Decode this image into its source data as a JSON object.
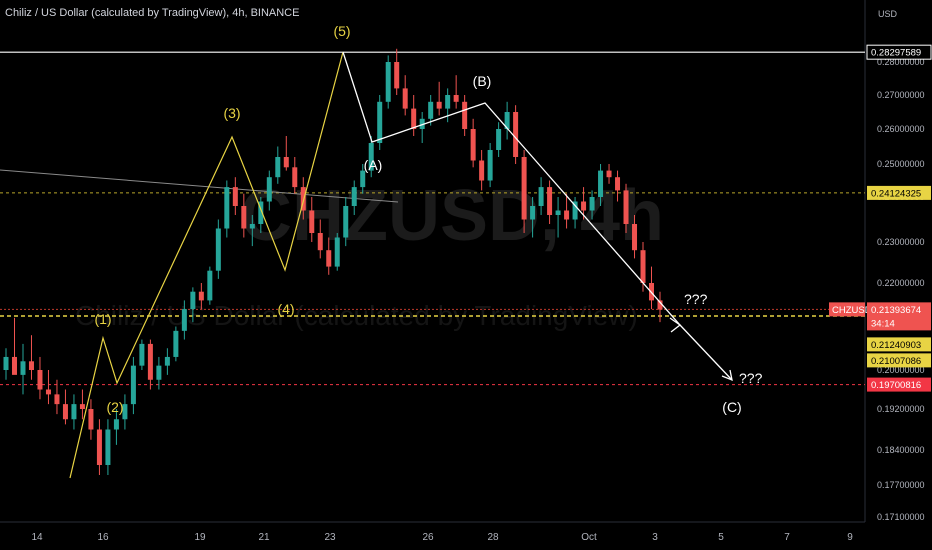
{
  "header": {
    "title": "Chiliz / US Dollar (calculated by TradingView), 4h, BINANCE"
  },
  "watermark": {
    "symbol": "CHZUSD, 4h",
    "name": "Chiliz / US Dollar (calculated by TradingView)"
  },
  "colors": {
    "up": "#26a69a",
    "down": "#ef5350",
    "yellow": "#e8d444",
    "white": "#ffffff",
    "red": "#f23645",
    "axis_bg": "#000000"
  },
  "chart_data": {
    "type": "candlestick",
    "ylabel": "USD",
    "y_ticks": [
      "0.28000000",
      "0.27000000",
      "0.26000000",
      "0.25000000",
      "0.24000000",
      "0.23000000",
      "0.22000000",
      "0.20000000",
      "0.19200000",
      "0.18400000",
      "0.17700000",
      "0.17100000"
    ],
    "x_ticks": [
      "14",
      "16",
      "19",
      "21",
      "23",
      "26",
      "28",
      "Oct",
      "3",
      "5",
      "7",
      "9"
    ],
    "price_tags": [
      {
        "label": "0.28297589",
        "value": 0.28297589,
        "style": "white"
      },
      {
        "label": "0.24124325",
        "value": 0.24124325,
        "style": "yellow"
      },
      {
        "label": "0.21393674",
        "value": 0.21393674,
        "style": "red",
        "symbol": "CHZUSD",
        "countdown": "34:14"
      },
      {
        "label": "0.21240903",
        "value": 0.21240903,
        "style": "yellow"
      },
      {
        "label": "0.21007086",
        "value": 0.21007086,
        "style": "yellow"
      },
      {
        "label": "0.19700816",
        "value": 0.19700816,
        "style": "red-solid"
      }
    ],
    "wave_labels": {
      "impulse": [
        "(1)",
        "(2)",
        "(3)",
        "(4)",
        "(5)"
      ],
      "corrective": [
        "(A)",
        "(B)",
        "(C)"
      ],
      "question": "???"
    },
    "candles_ohlc": [
      [
        0.2,
        0.205,
        0.198,
        0.203
      ],
      [
        0.203,
        0.212,
        0.2,
        0.199
      ],
      [
        0.199,
        0.206,
        0.195,
        0.202
      ],
      [
        0.202,
        0.208,
        0.198,
        0.2
      ],
      [
        0.2,
        0.203,
        0.194,
        0.196
      ],
      [
        0.196,
        0.2,
        0.193,
        0.195
      ],
      [
        0.195,
        0.198,
        0.191,
        0.193
      ],
      [
        0.193,
        0.196,
        0.189,
        0.19
      ],
      [
        0.19,
        0.195,
        0.188,
        0.193
      ],
      [
        0.193,
        0.196,
        0.19,
        0.192
      ],
      [
        0.192,
        0.194,
        0.186,
        0.188
      ],
      [
        0.188,
        0.19,
        0.179,
        0.181
      ],
      [
        0.181,
        0.19,
        0.179,
        0.188
      ],
      [
        0.188,
        0.192,
        0.185,
        0.19
      ],
      [
        0.19,
        0.195,
        0.188,
        0.193
      ],
      [
        0.193,
        0.203,
        0.191,
        0.201
      ],
      [
        0.201,
        0.207,
        0.2,
        0.206
      ],
      [
        0.206,
        0.207,
        0.196,
        0.198
      ],
      [
        0.198,
        0.203,
        0.196,
        0.201
      ],
      [
        0.201,
        0.205,
        0.199,
        0.203
      ],
      [
        0.203,
        0.21,
        0.202,
        0.209
      ],
      [
        0.209,
        0.216,
        0.207,
        0.214
      ],
      [
        0.214,
        0.219,
        0.211,
        0.218
      ],
      [
        0.218,
        0.22,
        0.214,
        0.216
      ],
      [
        0.216,
        0.224,
        0.215,
        0.223
      ],
      [
        0.223,
        0.235,
        0.221,
        0.233
      ],
      [
        0.233,
        0.245,
        0.231,
        0.243
      ],
      [
        0.243,
        0.246,
        0.236,
        0.238
      ],
      [
        0.238,
        0.241,
        0.231,
        0.233
      ],
      [
        0.233,
        0.236,
        0.229,
        0.234
      ],
      [
        0.234,
        0.24,
        0.232,
        0.239
      ],
      [
        0.239,
        0.248,
        0.237,
        0.246
      ],
      [
        0.246,
        0.255,
        0.244,
        0.252
      ],
      [
        0.252,
        0.258,
        0.248,
        0.249
      ],
      [
        0.249,
        0.252,
        0.241,
        0.243
      ],
      [
        0.243,
        0.246,
        0.235,
        0.237
      ],
      [
        0.237,
        0.24,
        0.23,
        0.232
      ],
      [
        0.232,
        0.235,
        0.226,
        0.228
      ],
      [
        0.228,
        0.231,
        0.222,
        0.224
      ],
      [
        0.224,
        0.232,
        0.223,
        0.231
      ],
      [
        0.231,
        0.24,
        0.229,
        0.238
      ],
      [
        0.238,
        0.245,
        0.236,
        0.243
      ],
      [
        0.243,
        0.25,
        0.241,
        0.248
      ],
      [
        0.248,
        0.258,
        0.246,
        0.256
      ],
      [
        0.256,
        0.27,
        0.254,
        0.268
      ],
      [
        0.268,
        0.282,
        0.266,
        0.28
      ],
      [
        0.28,
        0.284,
        0.27,
        0.272
      ],
      [
        0.272,
        0.276,
        0.264,
        0.266
      ],
      [
        0.266,
        0.27,
        0.258,
        0.26
      ],
      [
        0.26,
        0.265,
        0.256,
        0.263
      ],
      [
        0.263,
        0.27,
        0.261,
        0.268
      ],
      [
        0.268,
        0.274,
        0.264,
        0.266
      ],
      [
        0.266,
        0.272,
        0.262,
        0.27
      ],
      [
        0.27,
        0.276,
        0.266,
        0.268
      ],
      [
        0.268,
        0.27,
        0.258,
        0.26
      ],
      [
        0.26,
        0.263,
        0.249,
        0.251
      ],
      [
        0.251,
        0.254,
        0.242,
        0.245
      ],
      [
        0.245,
        0.256,
        0.243,
        0.254
      ],
      [
        0.254,
        0.262,
        0.252,
        0.26
      ],
      [
        0.26,
        0.268,
        0.257,
        0.265
      ],
      [
        0.265,
        0.267,
        0.25,
        0.252
      ],
      [
        0.252,
        0.254,
        0.232,
        0.235
      ],
      [
        0.235,
        0.24,
        0.231,
        0.238
      ],
      [
        0.238,
        0.246,
        0.236,
        0.243
      ],
      [
        0.243,
        0.245,
        0.234,
        0.236
      ],
      [
        0.236,
        0.24,
        0.231,
        0.237
      ],
      [
        0.237,
        0.241,
        0.233,
        0.235
      ],
      [
        0.235,
        0.24,
        0.233,
        0.239
      ],
      [
        0.239,
        0.243,
        0.235,
        0.237
      ],
      [
        0.237,
        0.242,
        0.235,
        0.24
      ],
      [
        0.24,
        0.25,
        0.238,
        0.248
      ],
      [
        0.248,
        0.25,
        0.244,
        0.246
      ],
      [
        0.246,
        0.248,
        0.239,
        0.242
      ],
      [
        0.242,
        0.244,
        0.232,
        0.234
      ],
      [
        0.234,
        0.236,
        0.226,
        0.228
      ],
      [
        0.228,
        0.23,
        0.218,
        0.22
      ],
      [
        0.22,
        0.224,
        0.214,
        0.216
      ],
      [
        0.216,
        0.218,
        0.211,
        0.2139
      ]
    ],
    "ylim": [
      0.171,
      0.288
    ]
  }
}
